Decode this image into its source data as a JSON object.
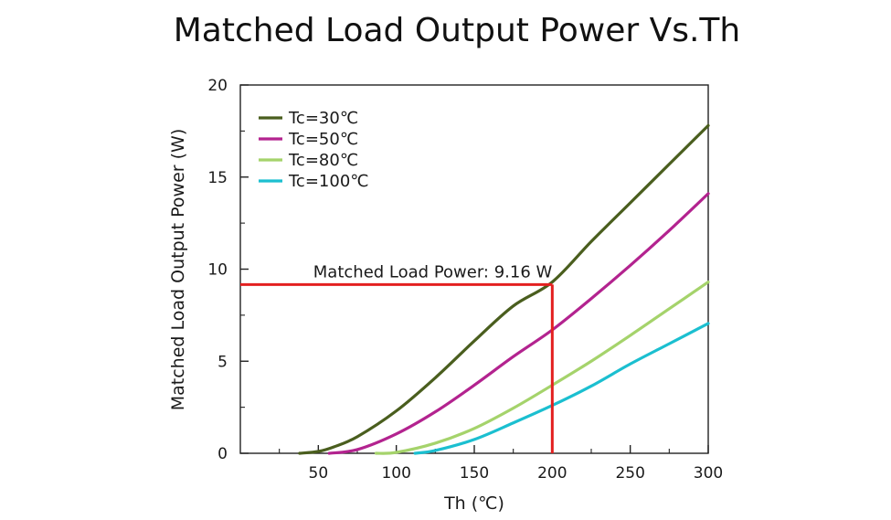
{
  "chart_data": {
    "type": "line",
    "title": "Matched Load Output Power Vs.Th",
    "xlabel": "Th (℃)",
    "ylabel": "Matched Load Output Power (W)",
    "xlim": [
      0,
      300
    ],
    "ylim": [
      0,
      20
    ],
    "xticks": [
      50,
      100,
      150,
      200,
      250,
      300
    ],
    "xtick_labels": [
      "50",
      "100",
      "150",
      "200",
      "250",
      "300"
    ],
    "yticks": [
      0,
      5,
      10,
      15,
      20
    ],
    "ytick_labels": [
      "0",
      "5",
      "10",
      "15",
      "20"
    ],
    "grid": false,
    "legend_position": "top-left",
    "series": [
      {
        "name": "Tc=30℃",
        "color": "#4a5e1e",
        "x": [
          38,
          50,
          60,
          75,
          100,
          125,
          150,
          175,
          200,
          225,
          250,
          275,
          300
        ],
        "y": [
          0.0,
          0.1,
          0.35,
          0.9,
          2.3,
          4.1,
          6.1,
          8.0,
          9.3,
          11.5,
          13.6,
          15.7,
          17.8
        ]
      },
      {
        "name": "Tc=50℃",
        "color": "#b3238f",
        "x": [
          57,
          75,
          100,
          125,
          150,
          175,
          200,
          225,
          250,
          275,
          300
        ],
        "y": [
          0.0,
          0.2,
          1.05,
          2.25,
          3.7,
          5.25,
          6.7,
          8.4,
          10.2,
          12.1,
          14.1
        ]
      },
      {
        "name": "Tc=80℃",
        "color": "#a5d36b",
        "x": [
          87,
          100,
          125,
          150,
          175,
          200,
          225,
          250,
          275,
          300
        ],
        "y": [
          0.0,
          0.05,
          0.55,
          1.35,
          2.45,
          3.7,
          5.0,
          6.4,
          7.85,
          9.3
        ]
      },
      {
        "name": "Tc=100℃",
        "color": "#1bbfd0",
        "x": [
          112,
          125,
          150,
          175,
          200,
          225,
          250,
          275,
          300
        ],
        "y": [
          0.0,
          0.15,
          0.75,
          1.65,
          2.6,
          3.65,
          4.85,
          5.95,
          7.05
        ]
      }
    ],
    "annotation": {
      "text": "Matched Load Power: 9.16 W",
      "x": 200,
      "y": 9.16,
      "color": "#e32020"
    }
  }
}
